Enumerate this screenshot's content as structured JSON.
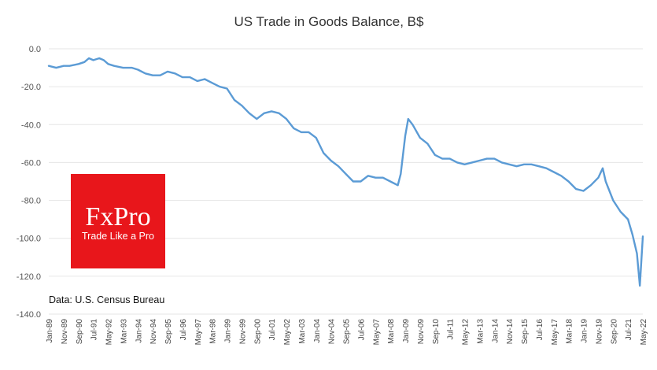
{
  "chart_data": {
    "type": "line",
    "title": "US Trade in Goods Balance, B$",
    "xlabel": "",
    "ylabel": "",
    "ylim": [
      -140,
      0
    ],
    "yticks": [
      {
        "value": 0,
        "label": "0.0"
      },
      {
        "value": -20,
        "label": "-20.0"
      },
      {
        "value": -40,
        "label": "-40.0"
      },
      {
        "value": -60,
        "label": "-60.0"
      },
      {
        "value": -80,
        "label": "-80.0"
      },
      {
        "value": -100,
        "label": "-100.0"
      },
      {
        "value": -120,
        "label": "-120.0"
      },
      {
        "value": -140,
        "label": "-140.0"
      }
    ],
    "x_start_month": "1989-01",
    "x_end_month": "2022-05",
    "xticks": [
      {
        "month": "1989-01",
        "label": "Jan-89"
      },
      {
        "month": "1989-11",
        "label": "Nov-89"
      },
      {
        "month": "1990-09",
        "label": "Sep-90"
      },
      {
        "month": "1991-07",
        "label": "Jul-91"
      },
      {
        "month": "1992-05",
        "label": "May-92"
      },
      {
        "month": "1993-03",
        "label": "Mar-93"
      },
      {
        "month": "1994-01",
        "label": "Jan-94"
      },
      {
        "month": "1994-11",
        "label": "Nov-94"
      },
      {
        "month": "1995-09",
        "label": "Sep-95"
      },
      {
        "month": "1996-07",
        "label": "Jul-96"
      },
      {
        "month": "1997-05",
        "label": "May-97"
      },
      {
        "month": "1998-03",
        "label": "Mar-98"
      },
      {
        "month": "1999-01",
        "label": "Jan-99"
      },
      {
        "month": "1999-11",
        "label": "Nov-99"
      },
      {
        "month": "2000-09",
        "label": "Sep-00"
      },
      {
        "month": "2001-07",
        "label": "Jul-01"
      },
      {
        "month": "2002-05",
        "label": "May-02"
      },
      {
        "month": "2003-03",
        "label": "Mar-03"
      },
      {
        "month": "2004-01",
        "label": "Jan-04"
      },
      {
        "month": "2004-11",
        "label": "Nov-04"
      },
      {
        "month": "2005-09",
        "label": "Sep-05"
      },
      {
        "month": "2006-07",
        "label": "Jul-06"
      },
      {
        "month": "2007-05",
        "label": "May-07"
      },
      {
        "month": "2008-03",
        "label": "Mar-08"
      },
      {
        "month": "2009-01",
        "label": "Jan-09"
      },
      {
        "month": "2009-11",
        "label": "Nov-09"
      },
      {
        "month": "2010-09",
        "label": "Sep-10"
      },
      {
        "month": "2011-07",
        "label": "Jul-11"
      },
      {
        "month": "2012-05",
        "label": "May-12"
      },
      {
        "month": "2013-03",
        "label": "Mar-13"
      },
      {
        "month": "2014-01",
        "label": "Jan-14"
      },
      {
        "month": "2014-11",
        "label": "Nov-14"
      },
      {
        "month": "2015-09",
        "label": "Sep-15"
      },
      {
        "month": "2016-07",
        "label": "Jul-16"
      },
      {
        "month": "2017-05",
        "label": "May-17"
      },
      {
        "month": "2018-03",
        "label": "Mar-18"
      },
      {
        "month": "2019-01",
        "label": "Jan-19"
      },
      {
        "month": "2019-11",
        "label": "Nov-19"
      },
      {
        "month": "2020-09",
        "label": "Sep-20"
      },
      {
        "month": "2021-07",
        "label": "Jul-21"
      },
      {
        "month": "2022-05",
        "label": "May-22"
      }
    ],
    "grid": true,
    "legend": "none",
    "series": [
      {
        "name": "US Trade in Goods Balance, B$",
        "color": "#5b9bd5",
        "points": [
          [
            "1989-01",
            -9
          ],
          [
            "1989-06",
            -10
          ],
          [
            "1989-11",
            -9
          ],
          [
            "1990-03",
            -9
          ],
          [
            "1990-09",
            -8
          ],
          [
            "1991-01",
            -7
          ],
          [
            "1991-04",
            -5
          ],
          [
            "1991-07",
            -6
          ],
          [
            "1991-11",
            -5
          ],
          [
            "1992-02",
            -6
          ],
          [
            "1992-05",
            -8
          ],
          [
            "1992-09",
            -9
          ],
          [
            "1993-03",
            -10
          ],
          [
            "1993-09",
            -10
          ],
          [
            "1994-01",
            -11
          ],
          [
            "1994-06",
            -13
          ],
          [
            "1994-11",
            -14
          ],
          [
            "1995-04",
            -14
          ],
          [
            "1995-09",
            -12
          ],
          [
            "1996-02",
            -13
          ],
          [
            "1996-07",
            -15
          ],
          [
            "1996-12",
            -15
          ],
          [
            "1997-05",
            -17
          ],
          [
            "1997-10",
            -16
          ],
          [
            "1998-03",
            -18
          ],
          [
            "1998-08",
            -20
          ],
          [
            "1999-01",
            -21
          ],
          [
            "1999-06",
            -27
          ],
          [
            "1999-11",
            -30
          ],
          [
            "2000-04",
            -34
          ],
          [
            "2000-09",
            -37
          ],
          [
            "2001-02",
            -34
          ],
          [
            "2001-07",
            -33
          ],
          [
            "2001-12",
            -34
          ],
          [
            "2002-05",
            -37
          ],
          [
            "2002-10",
            -42
          ],
          [
            "2003-03",
            -44
          ],
          [
            "2003-08",
            -44
          ],
          [
            "2004-01",
            -47
          ],
          [
            "2004-06",
            -55
          ],
          [
            "2004-11",
            -59
          ],
          [
            "2005-04",
            -62
          ],
          [
            "2005-09",
            -66
          ],
          [
            "2006-02",
            -70
          ],
          [
            "2006-07",
            -70
          ],
          [
            "2006-12",
            -67
          ],
          [
            "2007-05",
            -68
          ],
          [
            "2007-10",
            -68
          ],
          [
            "2008-03",
            -70
          ],
          [
            "2008-08",
            -72
          ],
          [
            "2008-10",
            -66
          ],
          [
            "2009-01",
            -46
          ],
          [
            "2009-03",
            -37
          ],
          [
            "2009-06",
            -40
          ],
          [
            "2009-11",
            -47
          ],
          [
            "2010-04",
            -50
          ],
          [
            "2010-09",
            -56
          ],
          [
            "2011-02",
            -58
          ],
          [
            "2011-07",
            -58
          ],
          [
            "2011-12",
            -60
          ],
          [
            "2012-05",
            -61
          ],
          [
            "2012-10",
            -60
          ],
          [
            "2013-03",
            -59
          ],
          [
            "2013-08",
            -58
          ],
          [
            "2014-01",
            -58
          ],
          [
            "2014-06",
            -60
          ],
          [
            "2014-11",
            -61
          ],
          [
            "2015-04",
            -62
          ],
          [
            "2015-09",
            -61
          ],
          [
            "2016-02",
            -61
          ],
          [
            "2016-07",
            -62
          ],
          [
            "2016-12",
            -63
          ],
          [
            "2017-05",
            -65
          ],
          [
            "2017-10",
            -67
          ],
          [
            "2018-03",
            -70
          ],
          [
            "2018-08",
            -74
          ],
          [
            "2019-01",
            -75
          ],
          [
            "2019-06",
            -72
          ],
          [
            "2019-11",
            -68
          ],
          [
            "2020-02",
            -63
          ],
          [
            "2020-04",
            -70
          ],
          [
            "2020-09",
            -80
          ],
          [
            "2021-02",
            -86
          ],
          [
            "2021-07",
            -90
          ],
          [
            "2021-10",
            -98
          ],
          [
            "2022-01",
            -108
          ],
          [
            "2022-03",
            -125
          ],
          [
            "2022-05",
            -99
          ]
        ]
      }
    ]
  },
  "source_note": "Data: U.S. Census Bureau",
  "logo": {
    "name": "FxPro",
    "tagline": "Trade Like a Pro",
    "color": "#e8161b"
  }
}
